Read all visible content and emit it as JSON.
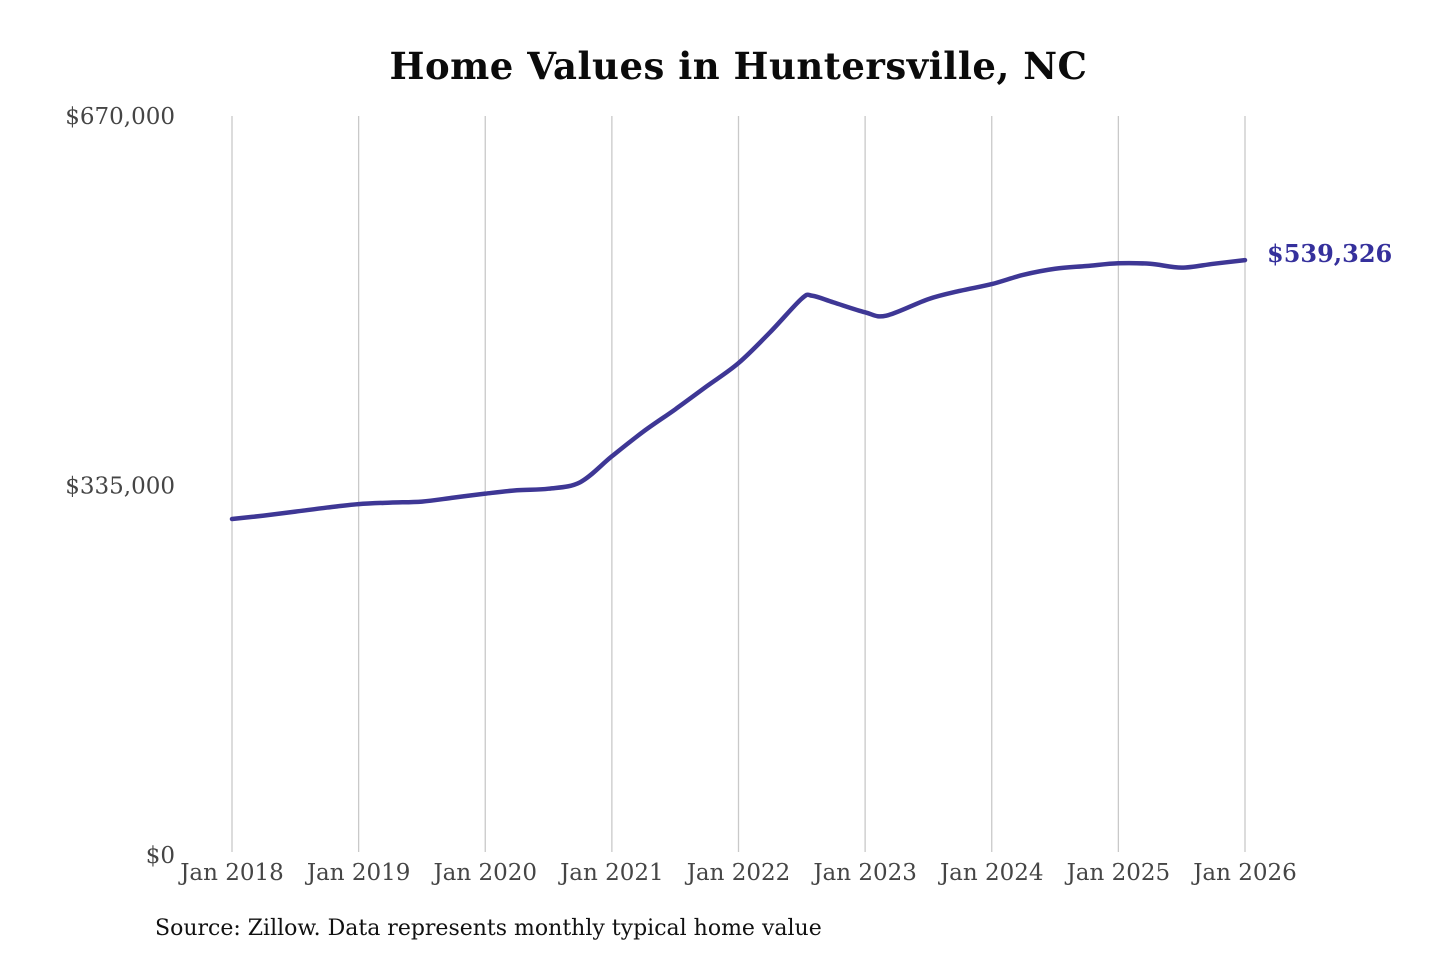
{
  "title": "Home Values in Huntersville, NC",
  "source_note": "Source: Zillow. Data represents monthly typical home value",
  "colors": {
    "background": "#ffffff",
    "line": "#3e3795",
    "end_label": "#35309c",
    "gridline": "#c9c9c9",
    "axis_text": "#454545",
    "title_text": "#0b0b0b",
    "source_text": "#111111"
  },
  "chart_data": {
    "type": "line",
    "title": "Home Values in Huntersville, NC",
    "xlabel": "",
    "ylabel": "",
    "grid": "vertical-only",
    "legend_position": "none",
    "ylim": [
      0,
      670000
    ],
    "y_ticks": [
      0,
      335000,
      670000
    ],
    "y_tick_labels": [
      "$0",
      "$335,000",
      "$670,000"
    ],
    "x_tick_years": [
      2018,
      2019,
      2020,
      2021,
      2022,
      2023,
      2024,
      2025,
      2026
    ],
    "x_tick_labels": [
      "Jan 2018",
      "Jan 2019",
      "Jan 2020",
      "Jan 2021",
      "Jan 2022",
      "Jan 2023",
      "Jan 2024",
      "Jan 2025",
      "Jan 2026"
    ],
    "end_annotation": {
      "text": "$539,326",
      "value": 539326,
      "date": "2026-01"
    },
    "series": [
      {
        "name": "Monthly typical home value",
        "points": [
          {
            "date": "2018-01",
            "value": 304600
          },
          {
            "date": "2018-04",
            "value": 307700
          },
          {
            "date": "2018-07",
            "value": 311300
          },
          {
            "date": "2018-10",
            "value": 315000
          },
          {
            "date": "2019-01",
            "value": 318100
          },
          {
            "date": "2019-04",
            "value": 319500
          },
          {
            "date": "2019-07",
            "value": 320400
          },
          {
            "date": "2019-10",
            "value": 324000
          },
          {
            "date": "2020-01",
            "value": 327600
          },
          {
            "date": "2020-04",
            "value": 330700
          },
          {
            "date": "2020-07",
            "value": 332100
          },
          {
            "date": "2020-10",
            "value": 338000
          },
          {
            "date": "2021-01",
            "value": 361500
          },
          {
            "date": "2021-04",
            "value": 384000
          },
          {
            "date": "2021-07",
            "value": 404000
          },
          {
            "date": "2021-10",
            "value": 425000
          },
          {
            "date": "2022-01",
            "value": 446000
          },
          {
            "date": "2022-04",
            "value": 474000
          },
          {
            "date": "2022-07",
            "value": 504500
          },
          {
            "date": "2022-08",
            "value": 507000
          },
          {
            "date": "2022-10",
            "value": 501000
          },
          {
            "date": "2023-01",
            "value": 492000
          },
          {
            "date": "2023-03",
            "value": 489000
          },
          {
            "date": "2023-07",
            "value": 504000
          },
          {
            "date": "2023-10",
            "value": 511500
          },
          {
            "date": "2024-01",
            "value": 517600
          },
          {
            "date": "2024-04",
            "value": 526000
          },
          {
            "date": "2024-07",
            "value": 531500
          },
          {
            "date": "2024-10",
            "value": 534000
          },
          {
            "date": "2025-01",
            "value": 536500
          },
          {
            "date": "2025-04",
            "value": 536000
          },
          {
            "date": "2025-07",
            "value": 532500
          },
          {
            "date": "2025-10",
            "value": 536000
          },
          {
            "date": "2026-01",
            "value": 539326
          }
        ]
      }
    ]
  }
}
